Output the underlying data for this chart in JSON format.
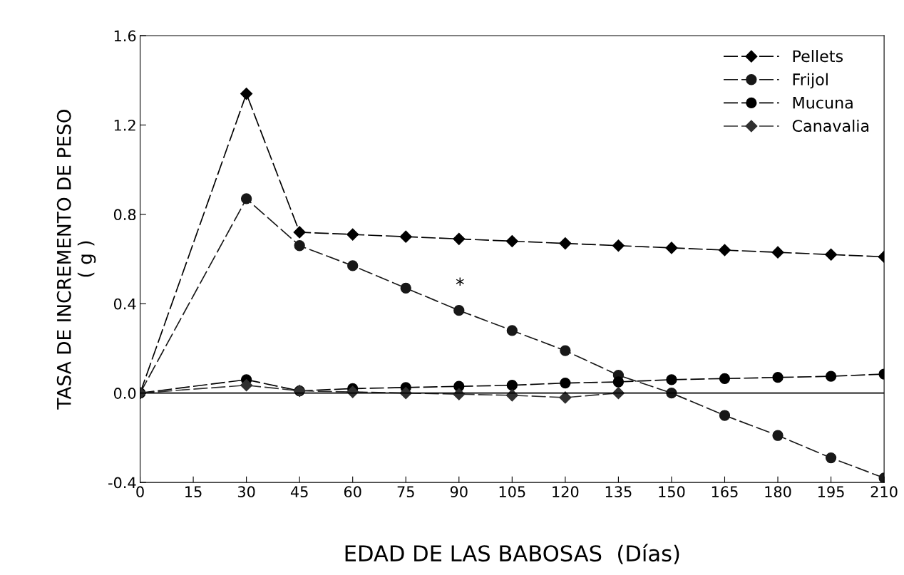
{
  "chart_data": {
    "type": "line",
    "xlabel": "EDAD DE LAS BABOSAS  (Días)",
    "ylabel": "TASA DE INCREMENTO DE PESO\n( g )",
    "x": [
      0,
      30,
      45,
      60,
      75,
      90,
      105,
      120,
      135,
      150,
      165,
      180,
      195,
      210
    ],
    "xlim": [
      0,
      210
    ],
    "xticks": [
      0,
      15,
      30,
      45,
      60,
      75,
      90,
      105,
      120,
      135,
      150,
      165,
      180,
      195,
      210
    ],
    "ylim": [
      -0.4,
      1.6
    ],
    "yticks": [
      {
        "value": -0.4,
        "label": "-0.4"
      },
      {
        "value": 0.0,
        "label": "0.0"
      },
      {
        "value": 0.4,
        "label": "0.4"
      },
      {
        "value": 0.8,
        "label": "0.8"
      },
      {
        "value": 1.2,
        "label": "1.2"
      },
      {
        "value": 1.6,
        "label": "1.6"
      }
    ],
    "grid": false,
    "legend": "top right",
    "line_style": "dashed",
    "ref_lines": [
      {
        "axis": "y",
        "value": 0.0,
        "color": "#000000",
        "line_style": "solid"
      }
    ],
    "annotations": [
      "*"
    ],
    "series": [
      {
        "name": "Pellets",
        "color": "#000000",
        "marker": "diamond",
        "values": [
          0,
          1.34,
          0.72,
          0.71,
          0.7,
          0.69,
          0.68,
          0.67,
          0.66,
          0.65,
          0.64,
          0.63,
          0.62,
          0.61
        ]
      },
      {
        "name": "Frijol",
        "color": "#181818",
        "marker": "circle",
        "values": [
          0,
          0.87,
          0.66,
          0.57,
          0.47,
          0.37,
          0.28,
          0.19,
          0.08,
          0.0,
          -0.1,
          -0.19,
          -0.29,
          -0.38
        ]
      },
      {
        "name": "Mucuna",
        "color": "#000000",
        "marker": "circle",
        "values": [
          0,
          0.06,
          0.01,
          0.02,
          0.025,
          0.03,
          0.035,
          0.045,
          0.05,
          0.06,
          0.065,
          0.07,
          0.075,
          0.085
        ]
      },
      {
        "name": "Canavalia",
        "color": "#303030",
        "marker": "diamond",
        "values": [
          0,
          0.035,
          0.01,
          0.005,
          0.0,
          -0.005,
          -0.01,
          -0.02,
          0.0,
          null,
          null,
          null,
          null,
          null
        ]
      }
    ]
  }
}
